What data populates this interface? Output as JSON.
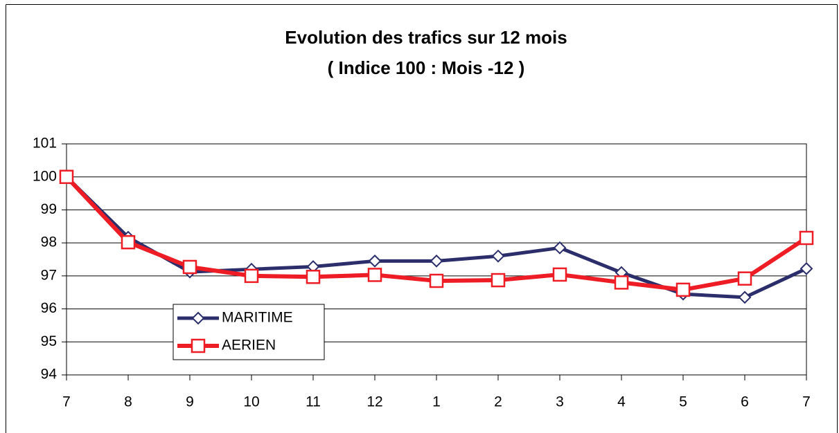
{
  "chart_data": {
    "type": "line",
    "title": "Evolution des trafics sur 12 mois",
    "subtitle": "( Indice 100 : Mois -12 )",
    "categories": [
      "7",
      "8",
      "9",
      "10",
      "11",
      "12",
      "1",
      "2",
      "3",
      "4",
      "5",
      "6",
      "7"
    ],
    "series": [
      {
        "name": "MARITIME",
        "color": "#2b2e6b",
        "marker": "diamond",
        "values": [
          100,
          98.17,
          97.12,
          97.2,
          97.28,
          97.45,
          97.45,
          97.6,
          97.85,
          97.1,
          96.45,
          96.35,
          97.22
        ]
      },
      {
        "name": "AERIEN",
        "color": "#ee1c24",
        "marker": "square",
        "values": [
          100,
          98.02,
          97.27,
          97.0,
          96.97,
          97.03,
          96.85,
          96.87,
          97.04,
          96.8,
          96.58,
          96.92,
          98.15
        ]
      }
    ],
    "ylim": [
      94,
      101
    ],
    "yticks": [
      94,
      95,
      96,
      97,
      98,
      99,
      100,
      101
    ],
    "grid": true
  }
}
